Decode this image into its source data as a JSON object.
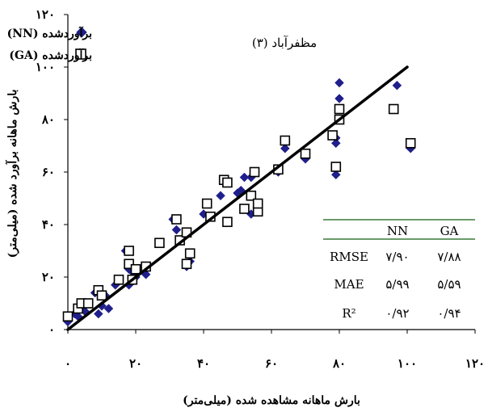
{
  "chart_data": {
    "type": "scatter",
    "title": "مظفرآباد (۳)",
    "xlabel": "بارش ماهانه مشاهده شده (میلی‌متر)",
    "ylabel": "بارش ماهانه برآورد شده (میلی‌متر)",
    "xlim": [
      0,
      120
    ],
    "ylim": [
      0,
      120
    ],
    "x_ticks": [
      0,
      20,
      40,
      60,
      80,
      100,
      120
    ],
    "x_tick_labels": [
      "۰",
      "۲۰",
      "۴۰",
      "۶۰",
      "۸۰",
      "۱۰۰",
      "۱۲۰"
    ],
    "y_ticks": [
      0,
      20,
      40,
      60,
      80,
      100,
      120
    ],
    "y_tick_labels": [
      "۰",
      "۲۰",
      "۴۰",
      "۶۰",
      "۸۰",
      "۱۰۰",
      "۱۲۰"
    ],
    "grid": false,
    "legend_position": "top-left",
    "series": [
      {
        "name": "برآوردشده (NN)",
        "marker": "diamond",
        "color": "#1f1f8c",
        "points": [
          [
            0,
            3
          ],
          [
            0,
            5
          ],
          [
            2,
            6
          ],
          [
            3,
            5
          ],
          [
            4,
            8
          ],
          [
            5,
            7
          ],
          [
            8,
            14
          ],
          [
            9,
            6
          ],
          [
            10,
            9
          ],
          [
            11,
            13
          ],
          [
            12,
            8
          ],
          [
            14,
            17
          ],
          [
            17,
            30
          ],
          [
            18,
            23
          ],
          [
            18,
            17
          ],
          [
            19,
            22
          ],
          [
            20,
            20
          ],
          [
            23,
            21
          ],
          [
            31,
            42
          ],
          [
            32,
            38
          ],
          [
            35,
            24
          ],
          [
            36,
            26
          ],
          [
            36,
            28
          ],
          [
            40,
            44
          ],
          [
            45,
            51
          ],
          [
            50,
            52
          ],
          [
            51,
            53
          ],
          [
            52,
            58
          ],
          [
            54,
            58
          ],
          [
            54,
            44
          ],
          [
            62,
            60
          ],
          [
            64,
            69
          ],
          [
            70,
            65
          ],
          [
            79,
            59
          ],
          [
            79,
            71
          ],
          [
            79,
            73
          ],
          [
            80,
            88
          ],
          [
            80,
            94
          ],
          [
            97,
            93
          ],
          [
            101,
            69
          ]
        ]
      },
      {
        "name": "برآوردشده (GA)",
        "marker": "square",
        "color": "#ffffff",
        "points": [
          [
            0,
            5
          ],
          [
            3,
            8
          ],
          [
            4,
            10
          ],
          [
            6,
            10
          ],
          [
            9,
            15
          ],
          [
            10,
            13
          ],
          [
            15,
            19
          ],
          [
            18,
            30
          ],
          [
            18,
            25
          ],
          [
            19,
            19
          ],
          [
            20,
            23
          ],
          [
            23,
            24
          ],
          [
            27,
            33
          ],
          [
            32,
            42
          ],
          [
            33,
            34
          ],
          [
            35,
            37
          ],
          [
            35,
            25
          ],
          [
            36,
            29
          ],
          [
            41,
            48
          ],
          [
            42,
            43
          ],
          [
            46,
            57
          ],
          [
            47,
            41
          ],
          [
            47,
            56
          ],
          [
            52,
            46
          ],
          [
            54,
            51
          ],
          [
            55,
            60
          ],
          [
            56,
            45
          ],
          [
            56,
            48
          ],
          [
            62,
            61
          ],
          [
            64,
            72
          ],
          [
            70,
            67
          ],
          [
            78,
            74
          ],
          [
            79,
            62
          ],
          [
            80,
            80
          ],
          [
            80,
            84
          ],
          [
            96,
            84
          ],
          [
            101,
            71
          ]
        ]
      }
    ],
    "fit_line": {
      "x": [
        0,
        100
      ],
      "y": [
        0,
        100
      ]
    },
    "stats_table": {
      "headers": [
        "",
        "NN",
        "GA"
      ],
      "rows": [
        [
          "RMSE",
          "۷/۹۰",
          "۷/۸۸"
        ],
        [
          "MAE",
          "۵/۹۹",
          "۵/۵۹"
        ],
        [
          "R²",
          "۰/۹۲",
          "۰/۹۴"
        ]
      ],
      "rule_color": "#3a7a3a"
    }
  }
}
